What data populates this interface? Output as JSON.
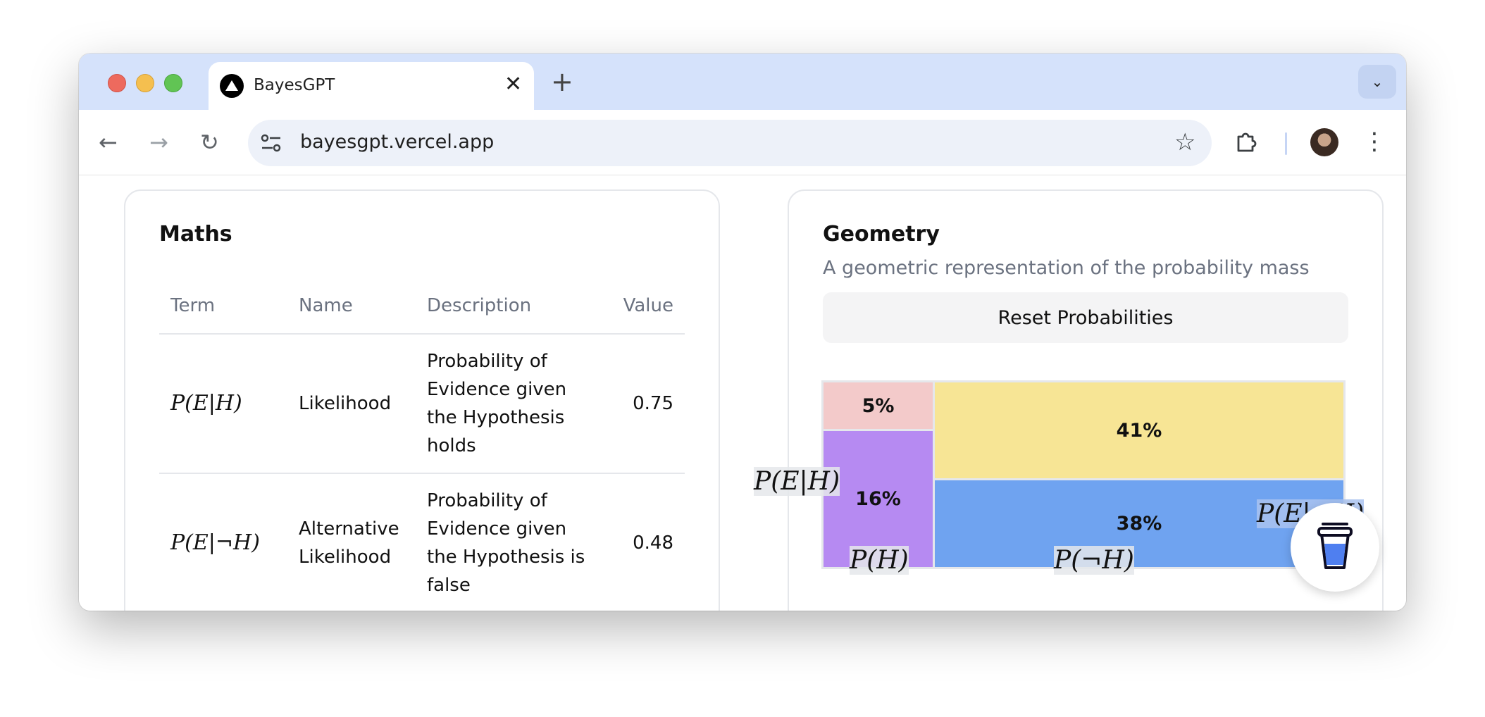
{
  "browser": {
    "tab_title": "BayesGPT",
    "tab_close": "✕",
    "new_tab": "+",
    "url": "bayesgpt.vercel.app",
    "star": "☆",
    "menu": "⋮",
    "chevron": "⌄",
    "back": "←",
    "forward": "→",
    "reload": "↻"
  },
  "maths": {
    "title": "Maths",
    "headers": [
      "Term",
      "Name",
      "Description",
      "Value"
    ],
    "rows": [
      {
        "term": "P(E|H)",
        "name": "Likelihood",
        "description": "Probability of Evidence given the Hypothesis holds",
        "value": "0.75"
      },
      {
        "term": "P(E|¬H)",
        "name": "Alternative Likelihood",
        "description": "Probability of Evidence given the Hypothesis is false",
        "value": "0.48"
      }
    ]
  },
  "geometry": {
    "title": "Geometry",
    "subtitle": "A geometric representation of the probability mass",
    "reset_label": "Reset Probabilities",
    "regions": [
      {
        "label": "5%",
        "color": "#f3caca"
      },
      {
        "label": "16%",
        "color": "#b68af2"
      },
      {
        "label": "41%",
        "color": "#f7e595"
      },
      {
        "label": "38%",
        "color": "#6fa3f0"
      }
    ],
    "prior_h": 0.21,
    "likelihood_split": 0.75,
    "alt_likelihood_split": 0.48,
    "labels": {
      "p_e_h": "P(E|H)",
      "p_e_not_h": "P(E|¬H)",
      "p_h": "P(H)",
      "p_not_h": "P(¬H)"
    }
  }
}
